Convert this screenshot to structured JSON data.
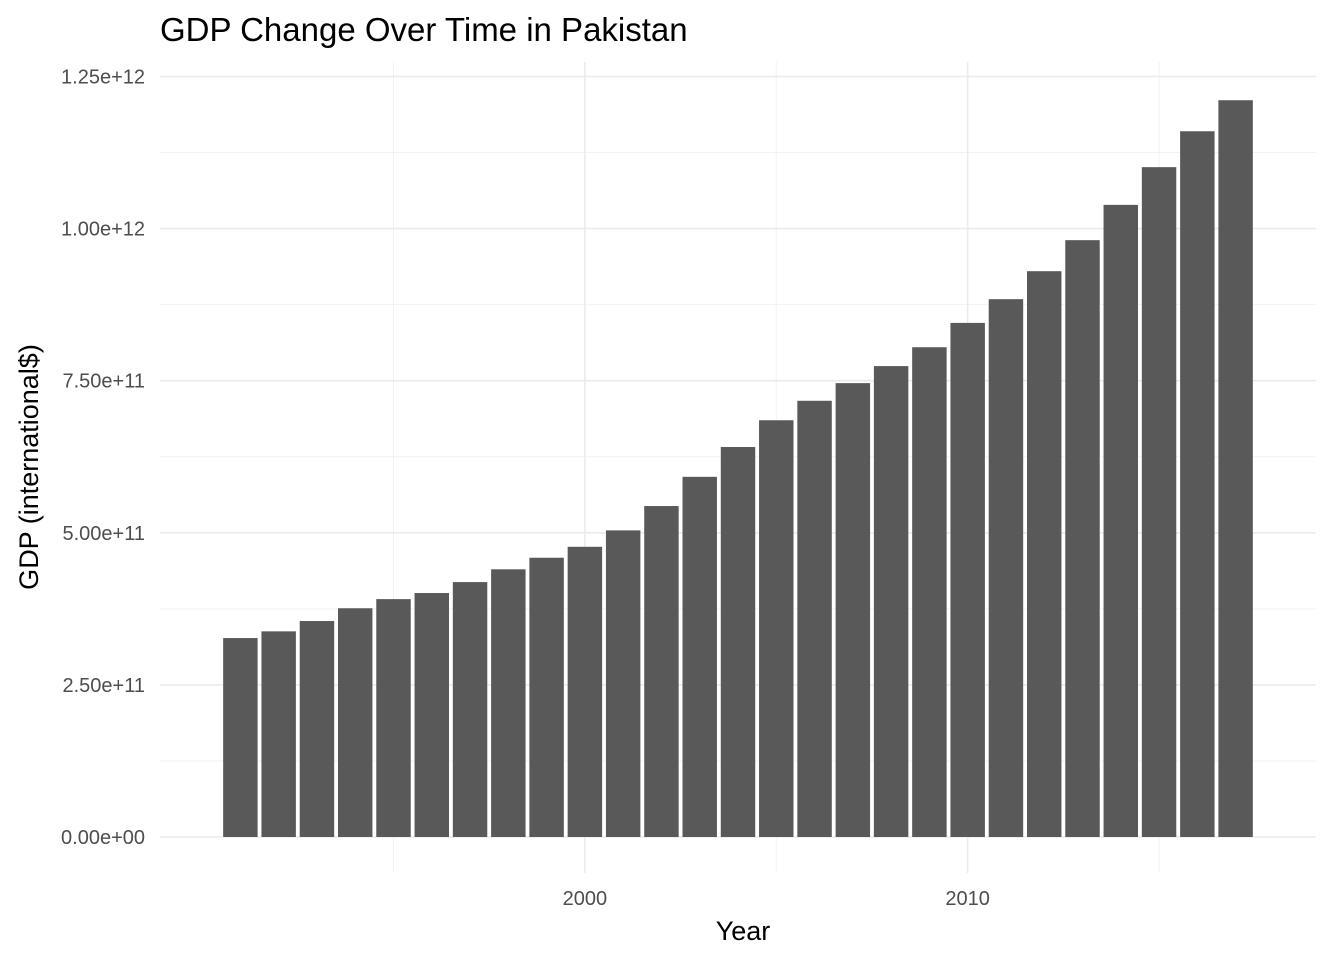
{
  "chart_data": {
    "type": "bar",
    "title": "GDP Change Over Time in Pakistan",
    "xlabel": "Year",
    "ylabel": "GDP (international$)",
    "x": [
      1991,
      1992,
      1993,
      1994,
      1995,
      1996,
      1997,
      1998,
      1999,
      2000,
      2001,
      2002,
      2003,
      2004,
      2005,
      2006,
      2007,
      2008,
      2009,
      2010,
      2011,
      2012,
      2013,
      2014,
      2015,
      2016,
      2017,
      2018
    ],
    "values": [
      327000000000.0,
      338000000000.0,
      355000000000.0,
      376000000000.0,
      391000000000.0,
      401000000000.0,
      419000000000.0,
      440000000000.0,
      459000000000.0,
      477000000000.0,
      504000000000.0,
      544000000000.0,
      592000000000.0,
      641000000000.0,
      685000000000.0,
      717000000000.0,
      746000000000.0,
      774000000000.0,
      805000000000.0,
      845000000000.0,
      884000000000.0,
      930000000000.0,
      981000000000.0,
      1039000000000.0,
      1101000000000.0,
      1160000000000.0,
      1211000000000.0,
      0
    ],
    "xlim": [
      1988.9,
      2019.1
    ],
    "ylim": [
      0,
      1250000000000.0
    ],
    "x_ticks": [
      2000,
      2010
    ],
    "x_tick_labels": [
      "2000",
      "2010"
    ],
    "y_ticks": [
      0,
      250000000000.0,
      500000000000.0,
      750000000000.0,
      1000000000000.0,
      1250000000000.0
    ],
    "y_tick_labels": [
      "0.00e+00",
      "2.50e+11",
      "5.00e+11",
      "7.50e+11",
      "1.00e+12",
      "1.25e+12"
    ],
    "grid": true,
    "legend": "none",
    "bar_color": "#595959"
  }
}
